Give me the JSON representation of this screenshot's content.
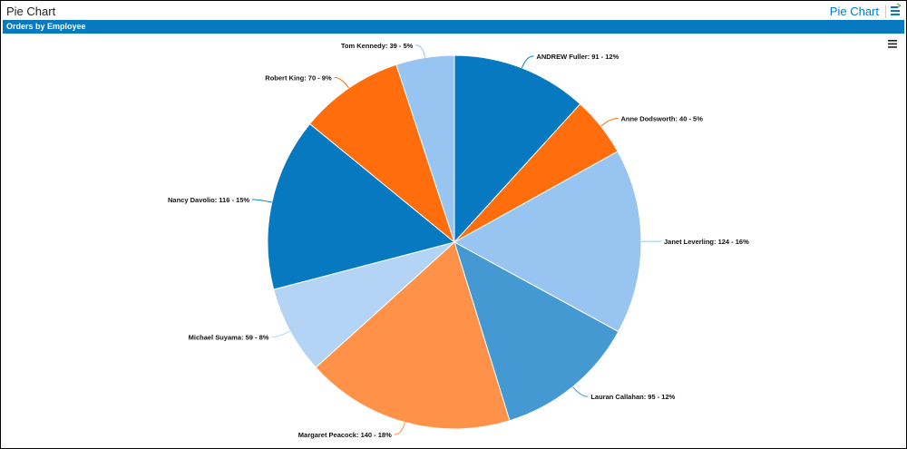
{
  "header": {
    "title": "Pie Chart",
    "link": "Pie Chart",
    "icon": "export-list-icon"
  },
  "panel": {
    "title": "Orders by Employee",
    "menu_icon": "hamburger-menu-icon"
  },
  "chart_data": {
    "type": "pie",
    "title": "Orders by Employee",
    "start": "top",
    "direction": "clockwise",
    "slices": [
      {
        "label": "ANDREW Fuller",
        "value": 91,
        "percent": "12%",
        "color": "#0779c1"
      },
      {
        "label": "Anne Dodsworth",
        "value": 40,
        "percent": "5%",
        "color": "#ff6d0c"
      },
      {
        "label": "Janet Leverling",
        "value": 124,
        "percent": "16%",
        "color": "#98c4f1"
      },
      {
        "label": "Lauran Callahan",
        "value": 95,
        "percent": "12%",
        "color": "#4599d2"
      },
      {
        "label": "Margaret Peacock",
        "value": 140,
        "percent": "18%",
        "color": "#ff9248"
      },
      {
        "label": "Michael Suyama",
        "value": 59,
        "percent": "8%",
        "color": "#b3d4f4"
      },
      {
        "label": "Nancy Davolio",
        "value": 116,
        "percent": "15%",
        "color": "#0779c1"
      },
      {
        "label": "Robert King",
        "value": 70,
        "percent": "9%",
        "color": "#ff6d0c"
      },
      {
        "label": "Tom Kennedy",
        "value": 39,
        "percent": "5%",
        "color": "#98c4f1"
      }
    ]
  }
}
